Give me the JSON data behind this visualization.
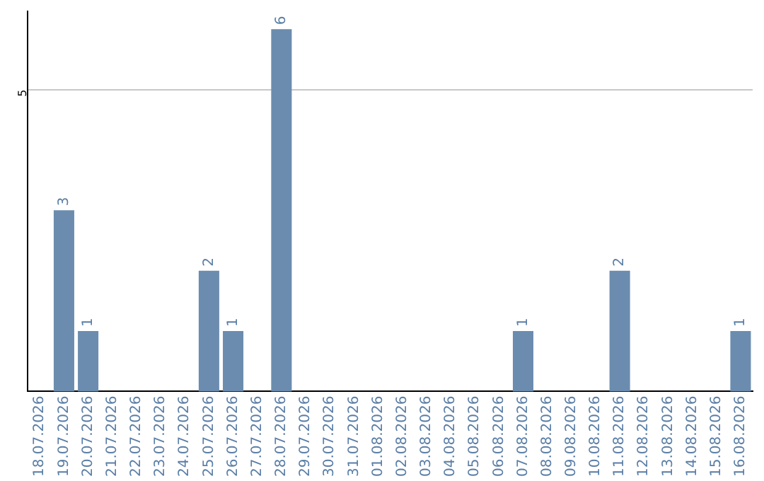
{
  "chart_data": {
    "type": "bar",
    "categories": [
      "18.07.2026",
      "19.07.2026",
      "20.07.2026",
      "21.07.2026",
      "22.07.2026",
      "23.07.2026",
      "24.07.2026",
      "25.07.2026",
      "26.07.2026",
      "27.07.2026",
      "28.07.2026",
      "29.07.2026",
      "30.07.2026",
      "31.07.2026",
      "01.08.2026",
      "02.08.2026",
      "03.08.2026",
      "04.08.2026",
      "05.08.2026",
      "06.08.2026",
      "07.08.2026",
      "08.08.2026",
      "09.08.2026",
      "10.08.2026",
      "11.08.2026",
      "12.08.2026",
      "13.08.2026",
      "14.08.2026",
      "15.08.2026",
      "16.08.2026"
    ],
    "values": [
      0,
      3,
      1,
      0,
      0,
      0,
      0,
      2,
      1,
      0,
      6,
      0,
      0,
      0,
      0,
      0,
      0,
      0,
      0,
      0,
      1,
      0,
      0,
      0,
      2,
      0,
      0,
      0,
      0,
      1
    ],
    "value_labels": [
      null,
      "3",
      "1",
      null,
      null,
      null,
      null,
      "2",
      "1",
      null,
      "6",
      null,
      null,
      null,
      null,
      null,
      null,
      null,
      null,
      null,
      "1",
      null,
      null,
      null,
      "2",
      null,
      null,
      null,
      null,
      "1"
    ],
    "color": "#6b8cae",
    "ylim": [
      0,
      6.3
    ],
    "yticks": [
      5
    ],
    "grid": "y",
    "legend": false
  }
}
